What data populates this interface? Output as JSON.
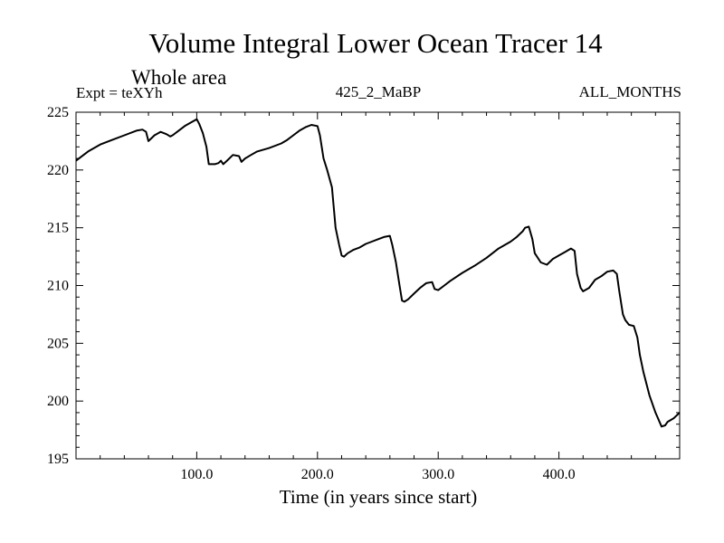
{
  "chart_data": {
    "type": "line",
    "title": "Volume Integral Lower Ocean Tracer 14",
    "subtitle": "Whole area",
    "expt_label": "Expt = teXYh",
    "run_label": "425_2_MaBP",
    "months_label": "ALL_MONTHS",
    "xlabel": "Time (in years since start)",
    "ylabel": "",
    "xlim": [
      0,
      500
    ],
    "ylim": [
      195,
      225
    ],
    "x_ticks": [
      100,
      200,
      300,
      400
    ],
    "x_tick_labels": [
      "100.0",
      "200.0",
      "300.0",
      "400.0"
    ],
    "y_ticks": [
      195,
      200,
      205,
      210,
      215,
      220,
      225
    ],
    "y_tick_labels": [
      "195",
      "200",
      "205",
      "210",
      "215",
      "220",
      "225"
    ],
    "grid": false,
    "line_color": "#000000",
    "series": [
      {
        "x": [
          0,
          10,
          20,
          30,
          40,
          50,
          55,
          58,
          60,
          62,
          65,
          70,
          75,
          78,
          80,
          85,
          90,
          95,
          100,
          102,
          105,
          108,
          110,
          115,
          118,
          120,
          122,
          125,
          130,
          135,
          137,
          140,
          145,
          150,
          160,
          170,
          175,
          180,
          185,
          190,
          195,
          200,
          202,
          205,
          208,
          212,
          215,
          218,
          220,
          222,
          225,
          230,
          235,
          240,
          245,
          250,
          255,
          260,
          262,
          265,
          268,
          270,
          272,
          275,
          280,
          285,
          290,
          295,
          297,
          300,
          305,
          310,
          320,
          330,
          340,
          350,
          360,
          365,
          370,
          372,
          375,
          378,
          380,
          385,
          390,
          395,
          400,
          405,
          410,
          413,
          415,
          418,
          420,
          425,
          430,
          435,
          440,
          445,
          448,
          450,
          453,
          455,
          458,
          462,
          465,
          467,
          470,
          475,
          480,
          485,
          488,
          490,
          495,
          500
        ],
        "y": [
          220.8,
          221.6,
          222.2,
          222.6,
          223.0,
          223.4,
          223.5,
          223.3,
          222.5,
          222.7,
          223.0,
          223.3,
          223.1,
          222.9,
          223.0,
          223.4,
          223.8,
          224.1,
          224.4,
          224.0,
          223.2,
          222.0,
          220.5,
          220.5,
          220.6,
          220.8,
          220.5,
          220.8,
          221.3,
          221.2,
          220.7,
          221.0,
          221.3,
          221.6,
          221.9,
          222.3,
          222.6,
          223.0,
          223.4,
          223.7,
          223.9,
          223.8,
          223.0,
          221.0,
          220.0,
          218.5,
          215.0,
          213.5,
          212.6,
          212.5,
          212.8,
          213.1,
          213.3,
          213.6,
          213.8,
          214.0,
          214.2,
          214.3,
          213.5,
          212.0,
          210.0,
          208.7,
          208.6,
          208.8,
          209.3,
          209.8,
          210.2,
          210.3,
          209.7,
          209.6,
          210.0,
          210.4,
          211.1,
          211.7,
          212.4,
          213.2,
          213.8,
          214.2,
          214.7,
          215.0,
          215.1,
          214.0,
          212.8,
          212.0,
          211.8,
          212.3,
          212.6,
          212.9,
          213.2,
          213.0,
          211.0,
          209.8,
          209.5,
          209.8,
          210.5,
          210.8,
          211.2,
          211.3,
          211.0,
          209.5,
          207.5,
          207.0,
          206.6,
          206.5,
          205.5,
          204.0,
          202.5,
          200.5,
          199.0,
          197.8,
          197.9,
          198.2,
          198.5,
          199.0
        ]
      }
    ]
  }
}
